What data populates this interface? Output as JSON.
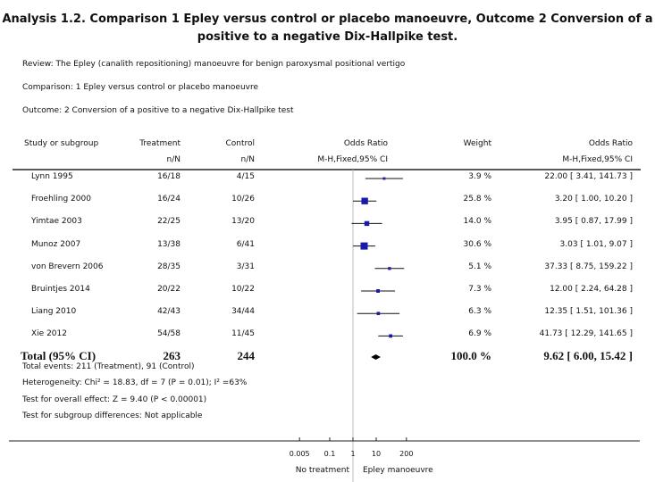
{
  "title_line1": "Analysis 1.2.   Comparison 1 Epley versus control or placebo manoeuvre, Outcome 2 Conversion of a",
  "title_line2": "positive to a negative Dix-Hallpike test.",
  "review": "Review:   The Epley (canalith repositioning) manoeuvre for benign paroxysmal positional vertigo",
  "comparison": "Comparison:   1 Epley versus control or placebo manoeuvre",
  "outcome": "Outcome:   2 Conversion of a positive to a negative Dix-Hallpike test",
  "headers": {
    "study": "Study or subgroup",
    "treatment": "Treatment",
    "treatment_sub": "n/N",
    "control": "Control",
    "control_sub": "n/N",
    "or": "Odds Ratio",
    "or_sub": "M-H,Fixed,95% CI",
    "weight": "Weight",
    "or2": "Odds Ratio",
    "or2_sub": "M-H,Fixed,95% CI"
  },
  "chart_data": {
    "type": "forest",
    "scale": "log",
    "xlim": [
      0.005,
      200
    ],
    "ticks": [
      "0.005",
      "0.1",
      "1",
      "10",
      "200"
    ],
    "tick_values": [
      0.005,
      0.1,
      1,
      10,
      200
    ],
    "left_label": "No treatment",
    "right_label": "Epley manoeuvre",
    "studies": [
      {
        "name": "Lynn 1995",
        "treatment": "16/18",
        "control": "4/15",
        "weight": 3.9,
        "weight_text": "3.9 %",
        "or": 22.0,
        "lo": 3.41,
        "hi": 141.73,
        "ci_text": "22.00 [ 3.41, 141.73 ]"
      },
      {
        "name": "Froehling 2000",
        "treatment": "16/24",
        "control": "10/26",
        "weight": 25.8,
        "weight_text": "25.8 %",
        "or": 3.2,
        "lo": 1.0,
        "hi": 10.2,
        "ci_text": "3.20 [ 1.00, 10.20 ]"
      },
      {
        "name": "Yimtae 2003",
        "treatment": "22/25",
        "control": "13/20",
        "weight": 14.0,
        "weight_text": "14.0 %",
        "or": 3.95,
        "lo": 0.87,
        "hi": 17.99,
        "ci_text": "3.95 [ 0.87, 17.99 ]"
      },
      {
        "name": "Munoz 2007",
        "treatment": "13/38",
        "control": "6/41",
        "weight": 30.6,
        "weight_text": "30.6 %",
        "or": 3.03,
        "lo": 1.01,
        "hi": 9.07,
        "ci_text": "3.03 [ 1.01, 9.07 ]"
      },
      {
        "name": "von Brevern 2006",
        "treatment": "28/35",
        "control": "3/31",
        "weight": 5.1,
        "weight_text": "5.1 %",
        "or": 37.33,
        "lo": 8.75,
        "hi": 159.22,
        "ci_text": "37.33 [ 8.75, 159.22 ]"
      },
      {
        "name": "Bruintjes 2014",
        "treatment": "20/22",
        "control": "10/22",
        "weight": 7.3,
        "weight_text": "7.3 %",
        "or": 12.0,
        "lo": 2.24,
        "hi": 64.28,
        "ci_text": "12.00 [ 2.24, 64.28 ]"
      },
      {
        "name": "Liang 2010",
        "treatment": "42/43",
        "control": "34/44",
        "weight": 6.3,
        "weight_text": "6.3 %",
        "or": 12.35,
        "lo": 1.51,
        "hi": 101.36,
        "ci_text": "12.35 [ 1.51, 101.36 ]"
      },
      {
        "name": "Xie 2012",
        "treatment": "54/58",
        "control": "11/45",
        "weight": 6.9,
        "weight_text": "6.9 %",
        "or": 41.73,
        "lo": 12.29,
        "hi": 141.65,
        "ci_text": "41.73 [ 12.29, 141.65 ]"
      }
    ],
    "total": {
      "name": "Total (95% CI)",
      "treatment": "263",
      "control": "244",
      "weight_text": "100.0 %",
      "or": 9.62,
      "lo": 6.0,
      "hi": 15.42,
      "ci_text": "9.62 [ 6.00, 15.42 ]"
    },
    "marker_color": "#1a1aa8"
  },
  "footer": {
    "events": "Total events: 211 (Treatment), 91 (Control)",
    "heterogeneity": "Heterogeneity: Chi² = 18.83, df = 7 (P = 0.01); I² =63%",
    "overall": "Test for overall effect: Z = 9.40 (P < 0.00001)",
    "subgroup": "Test for subgroup differences: Not applicable"
  }
}
